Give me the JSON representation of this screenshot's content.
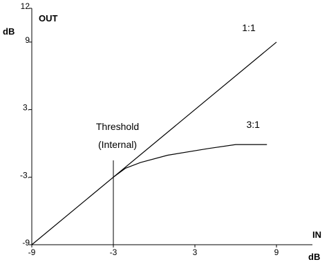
{
  "chart_data": {
    "type": "line",
    "xlabel": "IN",
    "xunit": "dB",
    "ylabel": "OUT",
    "yunit": "dB",
    "xlim": [
      -9,
      9
    ],
    "ylim": [
      -9,
      12
    ],
    "xticks": [
      -9,
      -3,
      3,
      9
    ],
    "yticks": [
      -9,
      -3,
      3,
      9,
      12
    ],
    "xtick_labels": [
      "-9",
      "-3",
      "3",
      "9"
    ],
    "ytick_labels": [
      "-9",
      "-3.",
      "3.",
      "9",
      "12"
    ],
    "grid": false,
    "series": [
      {
        "name": "1:1",
        "x": [
          -9,
          9
        ],
        "y": [
          -9,
          9
        ]
      },
      {
        "name": "3:1",
        "x": [
          -3,
          -2.1,
          -1,
          1,
          4,
          6,
          8.3
        ],
        "y": [
          -3,
          -2.2,
          -1.7,
          -1.05,
          -0.45,
          -0.1,
          -0.1
        ]
      }
    ],
    "threshold": {
      "x": -3,
      "label_line1": "Threshold",
      "label_line2": "(Internal)"
    }
  }
}
